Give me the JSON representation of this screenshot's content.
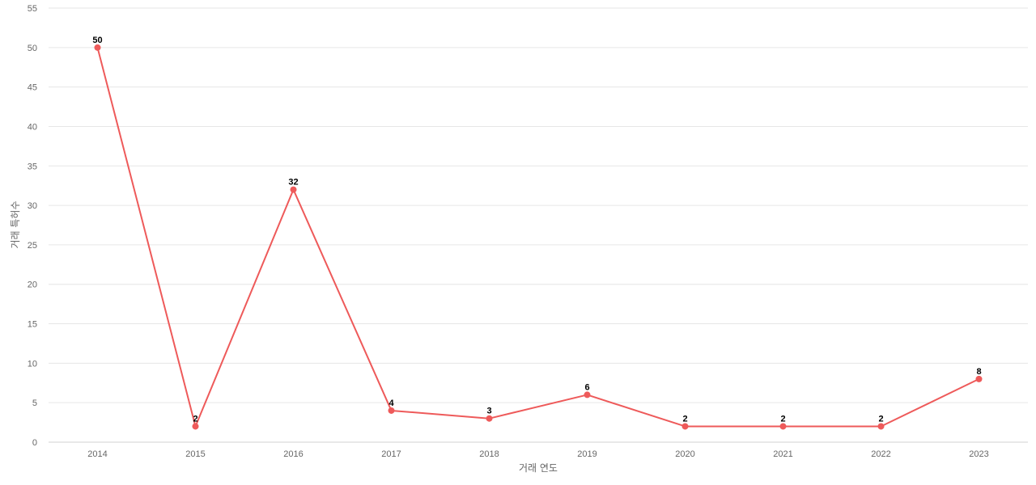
{
  "chart_data": {
    "type": "line",
    "xlabel": "거래 연도",
    "ylabel": "거래 특허수",
    "x": [
      "2014",
      "2015",
      "2016",
      "2017",
      "2018",
      "2019",
      "2020",
      "2021",
      "2022",
      "2023"
    ],
    "series": [
      {
        "values": [
          50,
          2,
          32,
          4,
          3,
          6,
          2,
          2,
          2,
          8
        ]
      }
    ],
    "ylim": [
      0,
      55
    ],
    "yticks": [
      0,
      5,
      10,
      15,
      20,
      25,
      30,
      35,
      40,
      45,
      50,
      55
    ],
    "grid": true,
    "data_labels": true,
    "colors": {
      "line": "#ee5a5a",
      "grid": "#e6e6e6"
    }
  }
}
